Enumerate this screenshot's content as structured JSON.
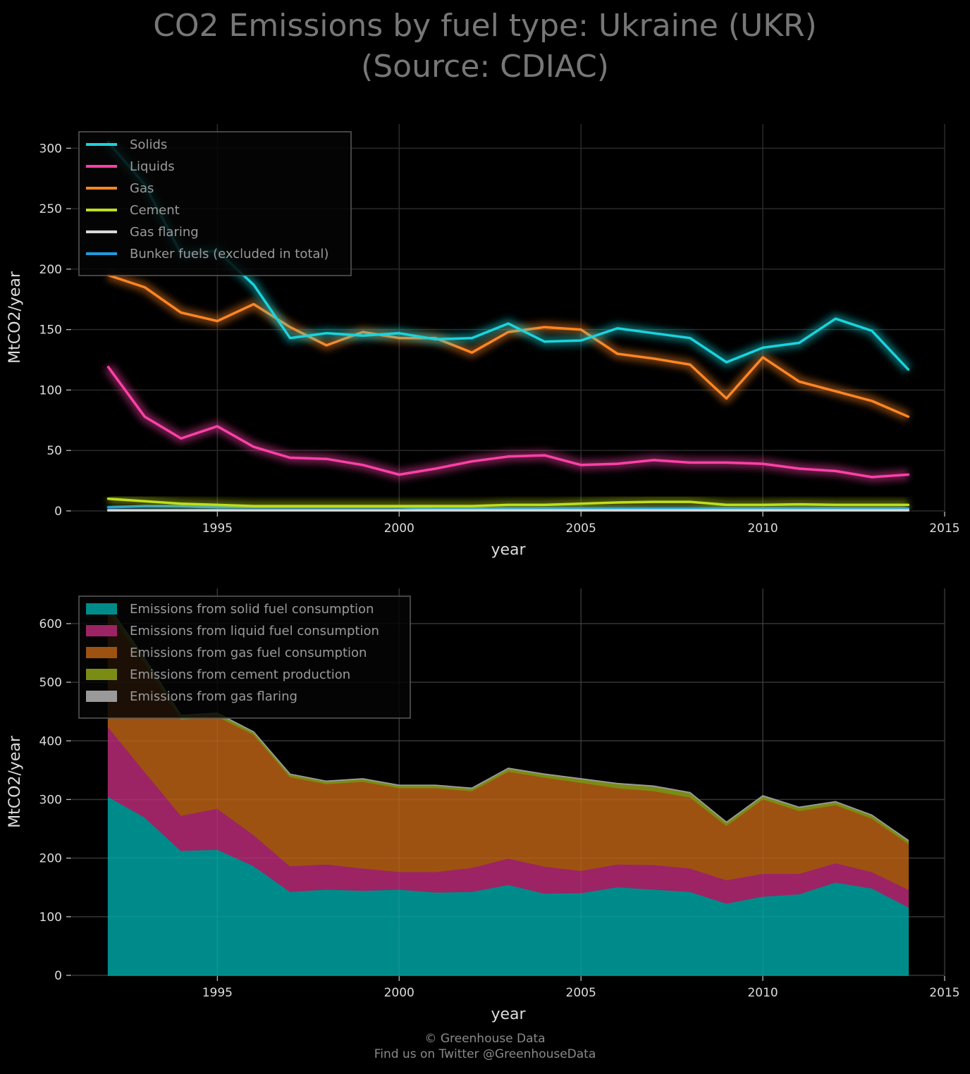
{
  "title_line1": "CO2 Emissions by fuel type: Ukraine (UKR)",
  "title_line2": "(Source: CDIAC)",
  "footer_line1": "© Greenhouse Data",
  "footer_line2": "Find us on Twitter @GreenhouseData",
  "chart_data": [
    {
      "type": "line",
      "xlabel": "year",
      "ylabel": "MtCO2/year",
      "xlim": [
        1991,
        2015
      ],
      "ylim": [
        0,
        320
      ],
      "xticks": [
        1995,
        2000,
        2005,
        2010,
        2015
      ],
      "yticks": [
        0,
        50,
        100,
        150,
        200,
        250,
        300
      ],
      "grid": true,
      "legend_position": "top-left",
      "x": [
        1992,
        1993,
        1994,
        1995,
        1996,
        1997,
        1998,
        1999,
        2000,
        2001,
        2002,
        2003,
        2004,
        2005,
        2006,
        2007,
        2008,
        2009,
        2010,
        2011,
        2012,
        2013,
        2014
      ],
      "series": [
        {
          "name": "Solids",
          "color": "#1ad4dc",
          "values": [
            305,
            270,
            213,
            215,
            187,
            143,
            147,
            145,
            147,
            142,
            143,
            155,
            140,
            141,
            151,
            147,
            143,
            123,
            135,
            139,
            159,
            149,
            117
          ]
        },
        {
          "name": "Liquids",
          "color": "#ff40a8",
          "values": [
            119,
            78,
            60,
            70,
            53,
            44,
            43,
            38,
            30,
            35,
            41,
            45,
            46,
            38,
            39,
            42,
            40,
            40,
            39,
            35,
            33,
            28,
            30
          ]
        },
        {
          "name": "Gas",
          "color": "#ff8624",
          "values": [
            195,
            185,
            164,
            157,
            171,
            152,
            137,
            148,
            143,
            143,
            131,
            148,
            152,
            150,
            130,
            126,
            121,
            93,
            127,
            107,
            99,
            91,
            78
          ]
        },
        {
          "name": "Cement",
          "color": "#c0de1c",
          "values": [
            10,
            8,
            6,
            5,
            4,
            4,
            4,
            4,
            4,
            4,
            4,
            5,
            5,
            6,
            7,
            7.5,
            7.5,
            5,
            5,
            5.5,
            5,
            5,
            5
          ]
        },
        {
          "name": "Gas flaring",
          "color": "#d8d8d8",
          "values": [
            0.5,
            0.5,
            0.5,
            0.5,
            0.5,
            0.5,
            0.5,
            0.5,
            0.5,
            0.5,
            0.5,
            0.5,
            0.5,
            0.5,
            0.5,
            0.5,
            0.5,
            0.5,
            0.5,
            0.5,
            0.5,
            0.5,
            0.5
          ]
        },
        {
          "name": "Bunker fuels (excluded in total)",
          "color": "#1e9ce0",
          "values": [
            3,
            4,
            4,
            3,
            3,
            3,
            3,
            3,
            3,
            2,
            2,
            2,
            2,
            2,
            2,
            2,
            2,
            2,
            2,
            2,
            2,
            2,
            2
          ]
        }
      ]
    },
    {
      "type": "area",
      "stacked": true,
      "xlabel": "year",
      "ylabel": "MtCO2/year",
      "xlim": [
        1991,
        2015
      ],
      "ylim": [
        0,
        660
      ],
      "xticks": [
        1995,
        2000,
        2005,
        2010,
        2015
      ],
      "yticks": [
        0,
        100,
        200,
        300,
        400,
        500,
        600
      ],
      "grid": true,
      "legend_position": "top-left",
      "x": [
        1992,
        1993,
        1994,
        1995,
        1996,
        1997,
        1998,
        1999,
        2000,
        2001,
        2002,
        2003,
        2004,
        2005,
        2006,
        2007,
        2008,
        2009,
        2010,
        2011,
        2012,
        2013,
        2014
      ],
      "series": [
        {
          "name": "Emissions from solid fuel consumption",
          "color": "#008b8b",
          "values": [
            305,
            270,
            213,
            215,
            187,
            143,
            147,
            145,
            147,
            142,
            143,
            155,
            140,
            141,
            151,
            147,
            143,
            123,
            135,
            139,
            159,
            149,
            117
          ]
        },
        {
          "name": "Emissions from liquid fuel consumption",
          "color": "#9c2464",
          "values": [
            119,
            78,
            60,
            70,
            53,
            44,
            43,
            38,
            30,
            35,
            41,
            45,
            46,
            38,
            39,
            42,
            40,
            40,
            39,
            35,
            33,
            28,
            30
          ]
        },
        {
          "name": "Emissions from gas fuel consumption",
          "color": "#9e5212",
          "values": [
            195,
            185,
            164,
            157,
            171,
            152,
            137,
            148,
            143,
            143,
            131,
            148,
            152,
            150,
            130,
            126,
            121,
            93,
            127,
            107,
            99,
            91,
            78
          ]
        },
        {
          "name": "Emissions from cement production",
          "color": "#7a8c14",
          "values": [
            10,
            8,
            6,
            5,
            4,
            4,
            4,
            4,
            4,
            4,
            4,
            5,
            5,
            6,
            7,
            7.5,
            7.5,
            5,
            5,
            5.5,
            5,
            5,
            5
          ]
        },
        {
          "name": "Emissions from gas flaring",
          "color": "#9a9a9a",
          "values": [
            0.5,
            0.5,
            0.5,
            0.5,
            0.5,
            0.5,
            0.5,
            0.5,
            0.5,
            0.5,
            0.5,
            0.5,
            0.5,
            0.5,
            0.5,
            0.5,
            0.5,
            0.5,
            0.5,
            0.5,
            0.5,
            0.5,
            0.5
          ]
        }
      ]
    }
  ]
}
